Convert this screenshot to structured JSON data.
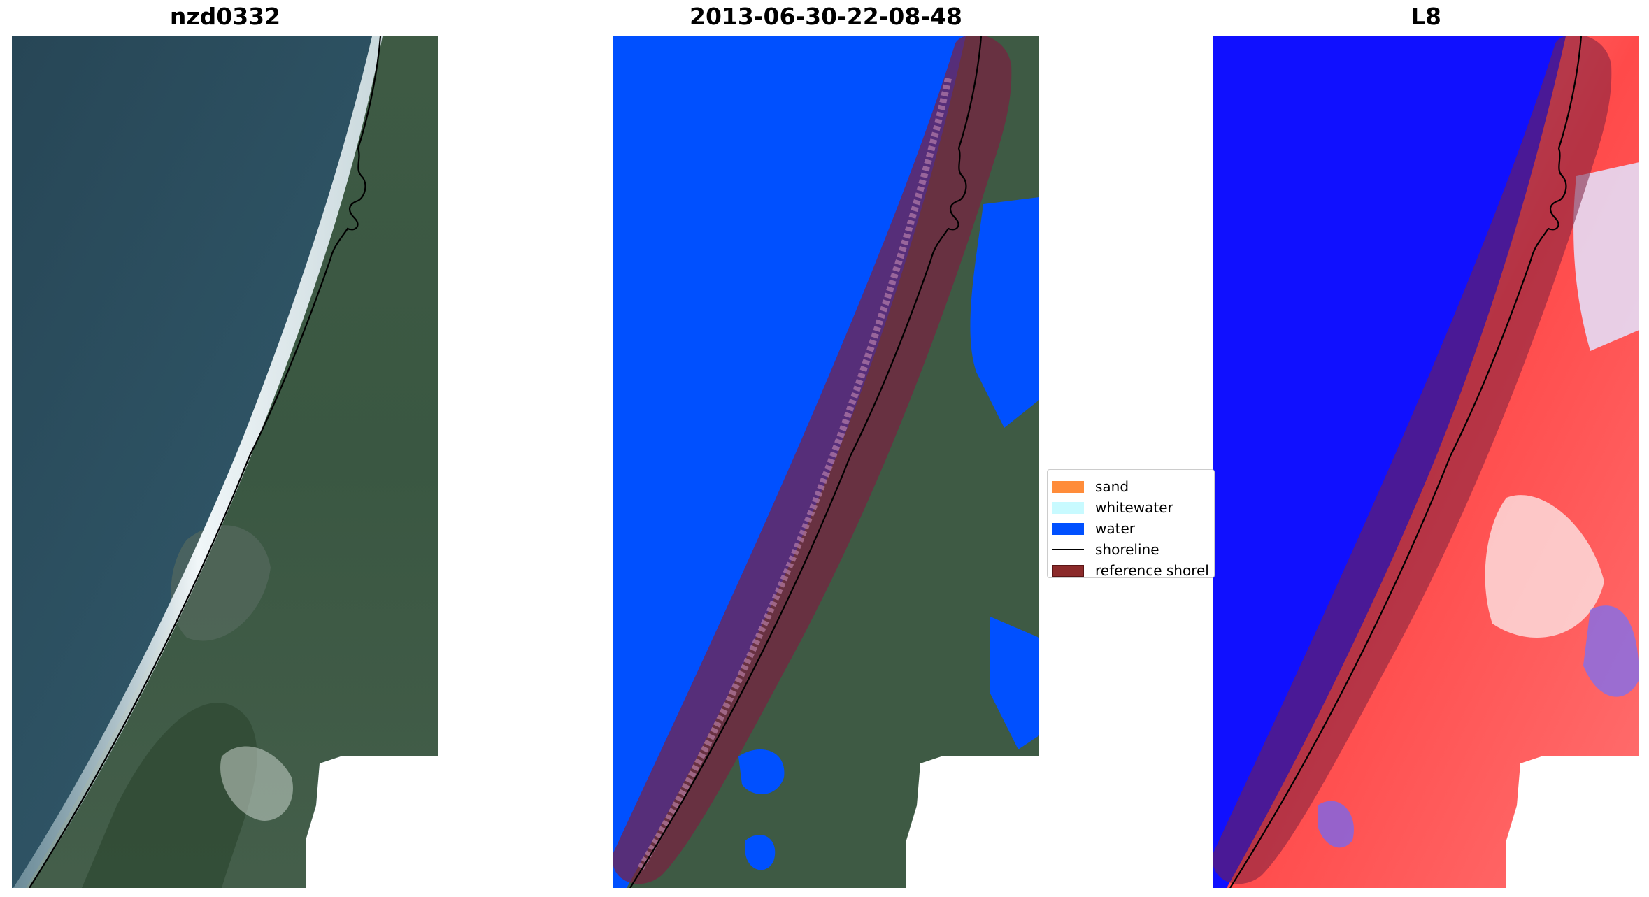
{
  "panels": [
    {
      "title": "nzd0332"
    },
    {
      "title": "2013-06-30-22-08-48"
    },
    {
      "title": "L8"
    }
  ],
  "legend": {
    "items": [
      {
        "label": "sand",
        "color": "#ff8c3a",
        "kind": "patch"
      },
      {
        "label": "whitewater",
        "color": "#c8faff",
        "kind": "patch"
      },
      {
        "label": "water",
        "color": "#0050ff",
        "kind": "patch"
      },
      {
        "label": "shoreline",
        "color": "#000000",
        "kind": "line"
      },
      {
        "label": "reference shorel",
        "color": "#8b2a2a",
        "kind": "patch"
      }
    ]
  },
  "colors": {
    "ocean_rgb": "#2e4f63",
    "land_rgb": "#3c5a3f",
    "water_class": "#0050ff",
    "buffer": "#7a2040",
    "index_low": "#1010ff",
    "index_high": "#ff2020"
  }
}
